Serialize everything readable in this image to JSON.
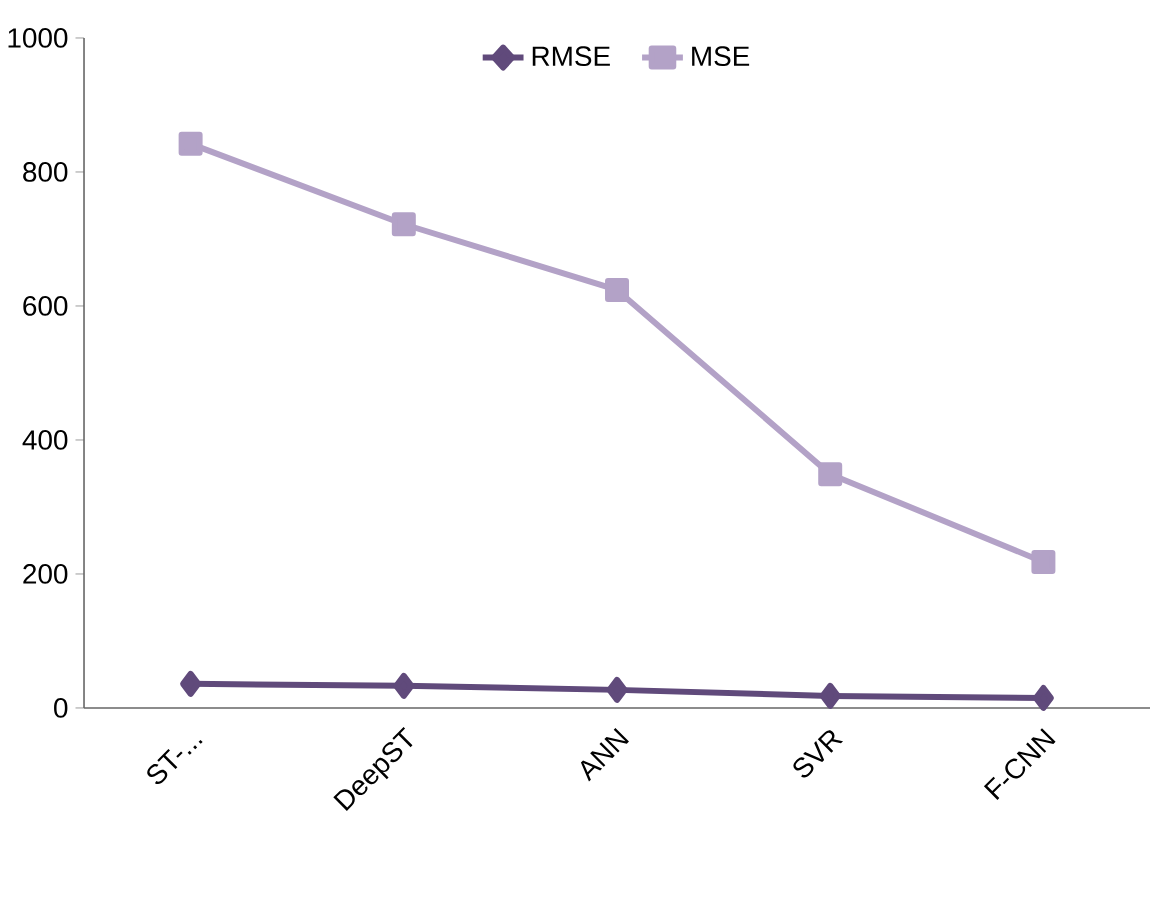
{
  "chart_data": {
    "type": "line",
    "categories": [
      "ST-...",
      "DeepST",
      "ANN",
      "SVR",
      "F-CNN"
    ],
    "series": [
      {
        "name": "RMSE",
        "color": "#604a7b",
        "marker": "diamond",
        "values": [
          36,
          33,
          27,
          18,
          15
        ]
      },
      {
        "name": "MSE",
        "color": "#b3a2c7",
        "marker": "square",
        "values": [
          842,
          722,
          624,
          349,
          218
        ]
      }
    ],
    "ylim": [
      0,
      1000
    ],
    "yticks": [
      0,
      200,
      400,
      600,
      800,
      1000
    ],
    "grid": false,
    "legend": "top",
    "line_style": "solid"
  }
}
